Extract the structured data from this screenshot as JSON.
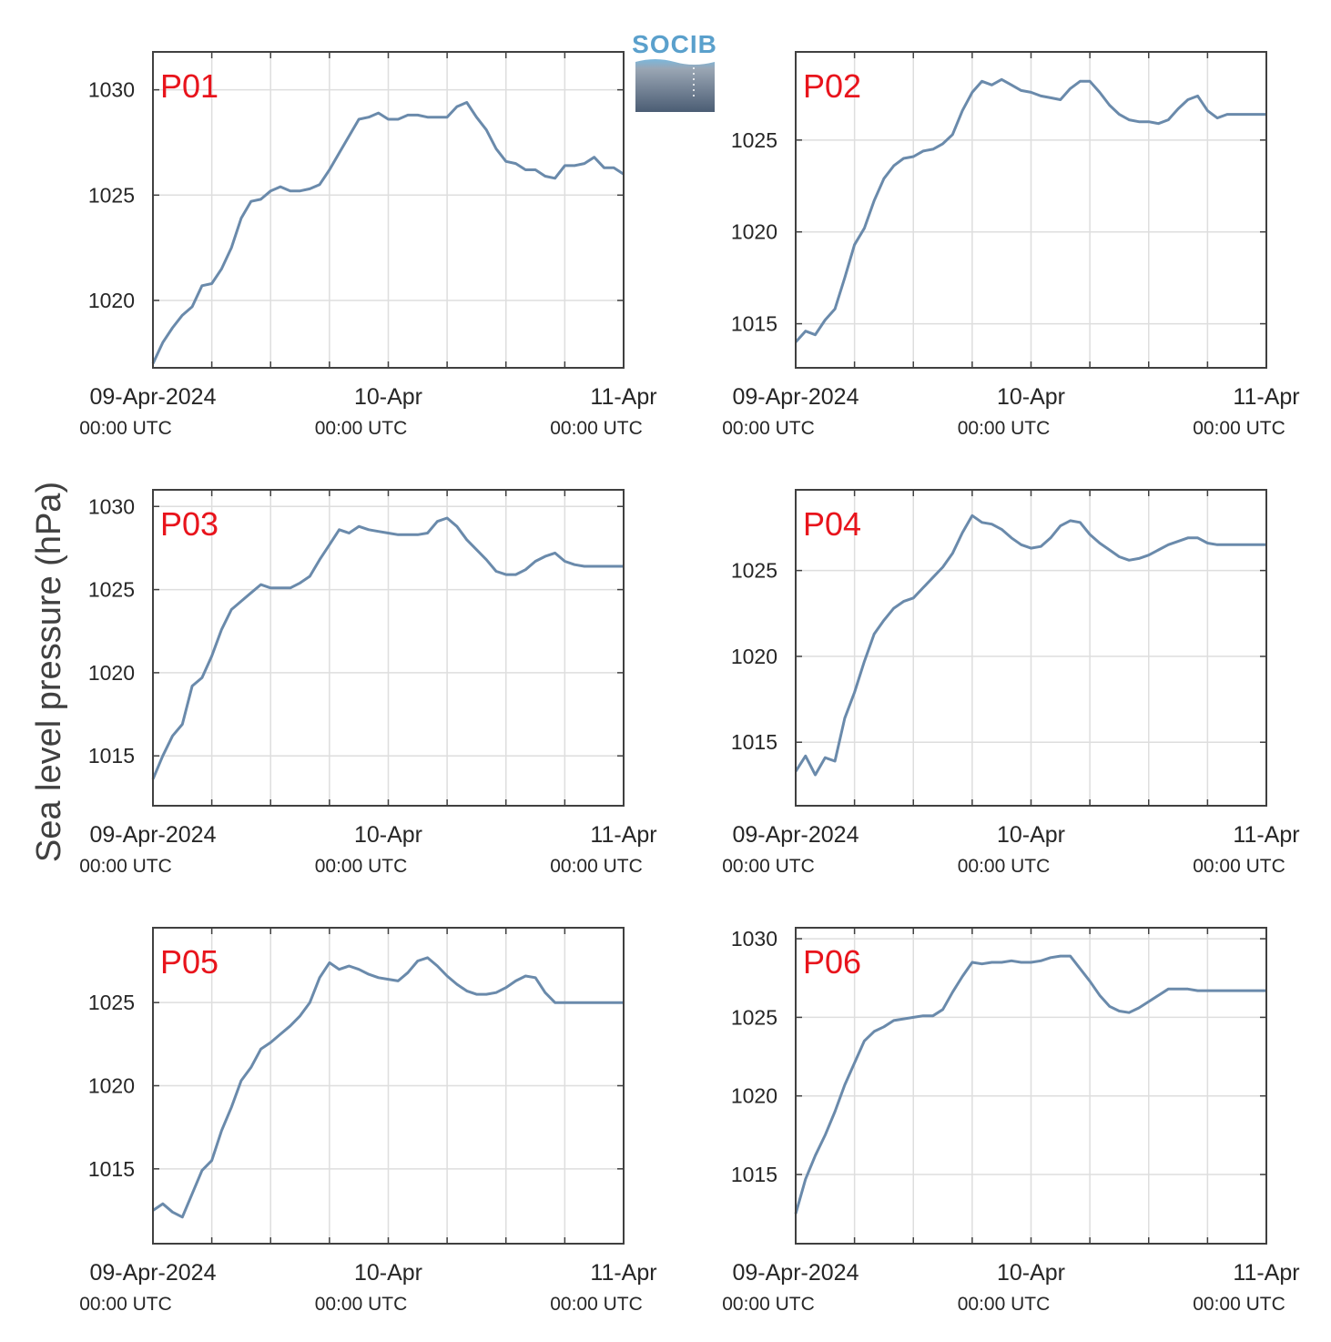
{
  "figure": {
    "ylabel": "Sea level pressure (hPa)",
    "logo": "SOCIB",
    "colors": {
      "line": "#6a8aab",
      "label": "#e8141c",
      "grid": "#dedede",
      "axis": "#404040",
      "logo_text": "#5aa0cc",
      "logo_top": "#7bb7dc",
      "logo_bottom": "#4b5d74"
    }
  },
  "chart_data": [
    {
      "type": "line",
      "label": "P01",
      "xlim": [
        "2024-04-09 00:00",
        "2024-04-11 00:00"
      ],
      "ylim": [
        1016.8,
        1031.8
      ],
      "yticks": [
        1020,
        1025,
        1030
      ],
      "xticks": [
        {
          "date": "09-Apr-2024",
          "time": "00:00 UTC"
        },
        {
          "date": "10-Apr",
          "time": "00:00 UTC"
        },
        {
          "date": "11-Apr",
          "time": "00:00 UTC"
        }
      ],
      "grid": true,
      "x_hours": [
        0,
        1,
        2,
        3,
        4,
        5,
        6,
        7,
        8,
        9,
        10,
        11,
        12,
        13,
        14,
        15,
        16,
        17,
        18,
        19,
        20,
        21,
        22,
        23,
        24,
        25,
        26,
        27,
        28,
        29,
        30,
        31,
        32,
        33,
        34,
        35,
        36,
        37,
        38,
        39,
        40,
        41,
        42,
        43,
        44,
        45,
        46,
        47,
        48
      ],
      "values": [
        1017.0,
        1018.0,
        1018.7,
        1019.3,
        1019.7,
        1020.7,
        1020.8,
        1021.5,
        1022.5,
        1023.9,
        1024.7,
        1024.8,
        1025.2,
        1025.4,
        1025.2,
        1025.2,
        1025.3,
        1025.5,
        1026.2,
        1027.0,
        1027.8,
        1028.6,
        1028.7,
        1028.9,
        1028.6,
        1028.6,
        1028.8,
        1028.8,
        1028.7,
        1028.7,
        1028.7,
        1029.2,
        1029.4,
        1028.7,
        1028.1,
        1027.2,
        1026.6,
        1026.5,
        1026.2,
        1026.2,
        1025.9,
        1025.8,
        1026.4,
        1026.4,
        1026.5,
        1026.8,
        1026.3,
        1026.3,
        1026.0
      ]
    },
    {
      "type": "line",
      "label": "P02",
      "xlim": [
        "2024-04-09 00:00",
        "2024-04-11 00:00"
      ],
      "ylim": [
        1012.6,
        1029.8
      ],
      "yticks": [
        1015,
        1020,
        1025
      ],
      "xticks": [
        {
          "date": "09-Apr-2024",
          "time": "00:00 UTC"
        },
        {
          "date": "10-Apr",
          "time": "00:00 UTC"
        },
        {
          "date": "11-Apr",
          "time": "00:00 UTC"
        }
      ],
      "grid": true,
      "x_hours": [
        0,
        1,
        2,
        3,
        4,
        5,
        6,
        7,
        8,
        9,
        10,
        11,
        12,
        13,
        14,
        15,
        16,
        17,
        18,
        19,
        20,
        21,
        22,
        23,
        24,
        25,
        26,
        27,
        28,
        29,
        30,
        31,
        32,
        33,
        34,
        35,
        36,
        37,
        38,
        39,
        40,
        41,
        42,
        43,
        44,
        45,
        46,
        47,
        48
      ],
      "values": [
        1014.0,
        1014.6,
        1014.4,
        1015.2,
        1015.8,
        1017.5,
        1019.3,
        1020.2,
        1021.7,
        1022.9,
        1023.6,
        1024.0,
        1024.1,
        1024.4,
        1024.5,
        1024.8,
        1025.3,
        1026.6,
        1027.6,
        1028.2,
        1028.0,
        1028.3,
        1028.0,
        1027.7,
        1027.6,
        1027.4,
        1027.3,
        1027.2,
        1027.8,
        1028.2,
        1028.2,
        1027.6,
        1026.9,
        1026.4,
        1026.1,
        1026.0,
        1026.0,
        1025.9,
        1026.1,
        1026.7,
        1027.2,
        1027.4,
        1026.6,
        1026.2,
        1026.4,
        1026.4,
        1026.4,
        1026.4,
        1026.4
      ]
    },
    {
      "type": "line",
      "label": "P03",
      "xlim": [
        "2024-04-09 00:00",
        "2024-04-11 00:00"
      ],
      "ylim": [
        1012.0,
        1031.0
      ],
      "yticks": [
        1015,
        1020,
        1025,
        1030
      ],
      "xticks": [
        {
          "date": "09-Apr-2024",
          "time": "00:00 UTC"
        },
        {
          "date": "10-Apr",
          "time": "00:00 UTC"
        },
        {
          "date": "11-Apr",
          "time": "00:00 UTC"
        }
      ],
      "grid": true,
      "x_hours": [
        0,
        1,
        2,
        3,
        4,
        5,
        6,
        7,
        8,
        9,
        10,
        11,
        12,
        13,
        14,
        15,
        16,
        17,
        18,
        19,
        20,
        21,
        22,
        23,
        24,
        25,
        26,
        27,
        28,
        29,
        30,
        31,
        32,
        33,
        34,
        35,
        36,
        37,
        38,
        39,
        40,
        41,
        42,
        43,
        44,
        45,
        46,
        47,
        48
      ],
      "values": [
        1013.6,
        1015.0,
        1016.2,
        1016.9,
        1019.2,
        1019.7,
        1021.0,
        1022.6,
        1023.8,
        1024.3,
        1024.8,
        1025.3,
        1025.1,
        1025.1,
        1025.1,
        1025.4,
        1025.8,
        1026.8,
        1027.7,
        1028.6,
        1028.4,
        1028.8,
        1028.6,
        1028.5,
        1028.4,
        1028.3,
        1028.3,
        1028.3,
        1028.4,
        1029.1,
        1029.3,
        1028.8,
        1028.0,
        1027.4,
        1026.8,
        1026.1,
        1025.9,
        1025.9,
        1026.2,
        1026.7,
        1027.0,
        1027.2,
        1026.7,
        1026.5,
        1026.4,
        1026.4,
        1026.4,
        1026.4,
        1026.4
      ]
    },
    {
      "type": "line",
      "label": "P04",
      "xlim": [
        "2024-04-09 00:00",
        "2024-04-11 00:00"
      ],
      "ylim": [
        1011.3,
        1029.7
      ],
      "yticks": [
        1015,
        1020,
        1025
      ],
      "xticks": [
        {
          "date": "09-Apr-2024",
          "time": "00:00 UTC"
        },
        {
          "date": "10-Apr",
          "time": "00:00 UTC"
        },
        {
          "date": "11-Apr",
          "time": "00:00 UTC"
        }
      ],
      "grid": true,
      "x_hours": [
        0,
        1,
        2,
        3,
        4,
        5,
        6,
        7,
        8,
        9,
        10,
        11,
        12,
        13,
        14,
        15,
        16,
        17,
        18,
        19,
        20,
        21,
        22,
        23,
        24,
        25,
        26,
        27,
        28,
        29,
        30,
        31,
        32,
        33,
        34,
        35,
        36,
        37,
        38,
        39,
        40,
        41,
        42,
        43,
        44,
        45,
        46,
        47,
        48
      ],
      "values": [
        1013.3,
        1014.2,
        1013.1,
        1014.1,
        1013.9,
        1016.4,
        1017.9,
        1019.7,
        1021.3,
        1022.1,
        1022.8,
        1023.2,
        1023.4,
        1024.0,
        1024.6,
        1025.2,
        1026.0,
        1027.2,
        1028.2,
        1027.8,
        1027.7,
        1027.4,
        1026.9,
        1026.5,
        1026.3,
        1026.4,
        1026.9,
        1027.6,
        1027.9,
        1027.8,
        1027.1,
        1026.6,
        1026.2,
        1025.8,
        1025.6,
        1025.7,
        1025.9,
        1026.2,
        1026.5,
        1026.7,
        1026.9,
        1026.9,
        1026.6,
        1026.5,
        1026.5,
        1026.5,
        1026.5,
        1026.5,
        1026.5
      ]
    },
    {
      "type": "line",
      "label": "P05",
      "xlim": [
        "2024-04-09 00:00",
        "2024-04-11 00:00"
      ],
      "ylim": [
        1010.5,
        1029.5
      ],
      "yticks": [
        1015,
        1020,
        1025
      ],
      "xticks": [
        {
          "date": "09-Apr-2024",
          "time": "00:00 UTC"
        },
        {
          "date": "10-Apr",
          "time": "00:00 UTC"
        },
        {
          "date": "11-Apr",
          "time": "00:00 UTC"
        }
      ],
      "grid": true,
      "x_hours": [
        0,
        1,
        2,
        3,
        4,
        5,
        6,
        7,
        8,
        9,
        10,
        11,
        12,
        13,
        14,
        15,
        16,
        17,
        18,
        19,
        20,
        21,
        22,
        23,
        24,
        25,
        26,
        27,
        28,
        29,
        30,
        31,
        32,
        33,
        34,
        35,
        36,
        37,
        38,
        39,
        40,
        41,
        42,
        43,
        44,
        45,
        46,
        47,
        48
      ],
      "values": [
        1012.5,
        1012.9,
        1012.4,
        1012.1,
        1013.5,
        1014.9,
        1015.5,
        1017.3,
        1018.7,
        1020.3,
        1021.1,
        1022.2,
        1022.6,
        1023.1,
        1023.6,
        1024.2,
        1025.0,
        1026.5,
        1027.4,
        1027.0,
        1027.2,
        1027.0,
        1026.7,
        1026.5,
        1026.4,
        1026.3,
        1026.8,
        1027.5,
        1027.7,
        1027.2,
        1026.6,
        1026.1,
        1025.7,
        1025.5,
        1025.5,
        1025.6,
        1025.9,
        1026.3,
        1026.6,
        1026.5,
        1025.6,
        1025.0,
        1025.0,
        1025.0,
        1025.0,
        1025.0,
        1025.0,
        1025.0,
        1025.0
      ]
    },
    {
      "type": "line",
      "label": "P06",
      "xlim": [
        "2024-04-09 00:00",
        "2024-04-11 00:00"
      ],
      "ylim": [
        1010.6,
        1030.7
      ],
      "yticks": [
        1015,
        1020,
        1025,
        1030
      ],
      "xticks": [
        {
          "date": "09-Apr-2024",
          "time": "00:00 UTC"
        },
        {
          "date": "10-Apr",
          "time": "00:00 UTC"
        },
        {
          "date": "11-Apr",
          "time": "00:00 UTC"
        }
      ],
      "grid": true,
      "x_hours": [
        0,
        1,
        2,
        3,
        4,
        5,
        6,
        7,
        8,
        9,
        10,
        11,
        12,
        13,
        14,
        15,
        16,
        17,
        18,
        19,
        20,
        21,
        22,
        23,
        24,
        25,
        26,
        27,
        28,
        29,
        30,
        31,
        32,
        33,
        34,
        35,
        36,
        37,
        38,
        39,
        40,
        41,
        42,
        43,
        44,
        45,
        46,
        47,
        48
      ],
      "values": [
        1012.5,
        1014.7,
        1016.2,
        1017.5,
        1019.0,
        1020.7,
        1022.1,
        1023.5,
        1024.1,
        1024.4,
        1024.8,
        1024.9,
        1025.0,
        1025.1,
        1025.1,
        1025.5,
        1026.6,
        1027.6,
        1028.5,
        1028.4,
        1028.5,
        1028.5,
        1028.6,
        1028.5,
        1028.5,
        1028.6,
        1028.8,
        1028.9,
        1028.9,
        1028.1,
        1027.3,
        1026.4,
        1025.7,
        1025.4,
        1025.3,
        1025.6,
        1026.0,
        1026.4,
        1026.8,
        1026.8,
        1026.8,
        1026.7,
        1026.7,
        1026.7,
        1026.7,
        1026.7,
        1026.7,
        1026.7,
        1026.7
      ]
    }
  ]
}
